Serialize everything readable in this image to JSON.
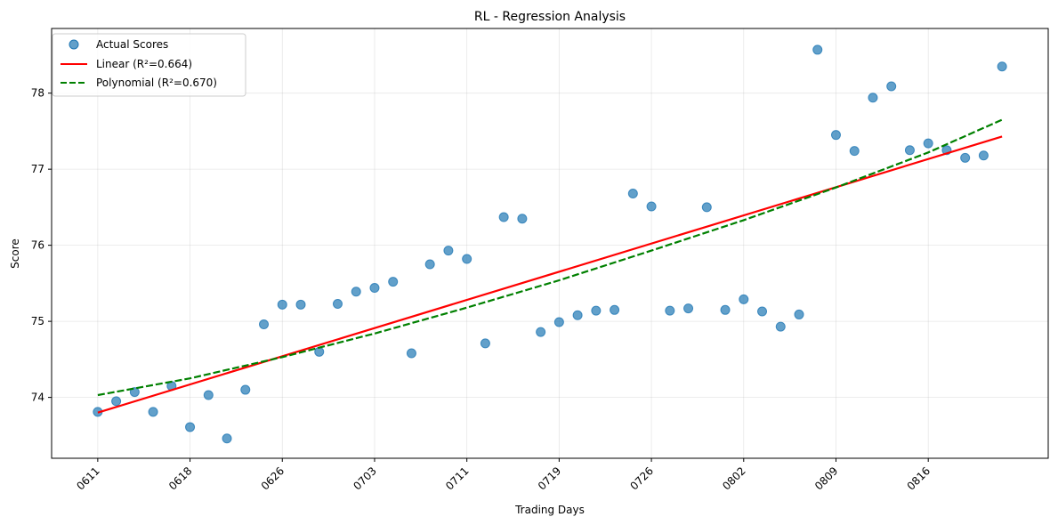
{
  "chart_data": {
    "type": "scatter",
    "title": "RL - Regression Analysis",
    "xlabel": "Trading Days",
    "ylabel": "Score",
    "x_ticks": [
      "0611",
      "0618",
      "0626",
      "0703",
      "0711",
      "0719",
      "0726",
      "0802",
      "0809",
      "0816"
    ],
    "x_tick_indices": [
      0,
      5,
      10,
      15,
      20,
      25,
      30,
      35,
      40,
      45
    ],
    "xlim": [
      -2.5,
      51.5
    ],
    "ylim": [
      73.2,
      78.85
    ],
    "y_ticks": [
      74,
      75,
      76,
      77,
      78
    ],
    "grid": true,
    "legend_position": "upper-left",
    "series": [
      {
        "name": "Actual Scores",
        "kind": "scatter",
        "color": "#1f77b4",
        "x": [
          0,
          1,
          2,
          3,
          4,
          5,
          6,
          7,
          8,
          9,
          10,
          11,
          12,
          13,
          14,
          15,
          16,
          17,
          18,
          19,
          20,
          21,
          22,
          23,
          24,
          25,
          26,
          27,
          28,
          29,
          30,
          31,
          32,
          33,
          34,
          35,
          36,
          37,
          38,
          39,
          40,
          41,
          42,
          43,
          44,
          45,
          46,
          47,
          48,
          49
        ],
        "y": [
          73.81,
          73.95,
          74.07,
          73.81,
          74.15,
          73.61,
          74.03,
          73.46,
          74.1,
          74.96,
          75.22,
          75.22,
          74.6,
          75.23,
          75.39,
          75.44,
          75.52,
          74.58,
          75.75,
          75.93,
          75.82,
          74.71,
          76.37,
          76.35,
          74.86,
          74.99,
          75.08,
          75.14,
          75.15,
          76.68,
          76.51,
          75.14,
          75.17,
          76.5,
          75.15,
          75.29,
          75.13,
          74.93,
          75.09,
          78.57,
          77.45,
          77.24,
          77.94,
          78.09,
          77.25,
          77.34,
          77.25,
          77.15,
          77.18,
          78.35
        ]
      },
      {
        "name": "Linear (R²=0.664)",
        "kind": "line",
        "color": "#ff0000",
        "dash": "solid",
        "x": [
          0,
          49
        ],
        "y": [
          73.8,
          77.43
        ]
      },
      {
        "name": "Polynomial (R²=0.670)",
        "kind": "line",
        "color": "#008000",
        "dash": "dashed",
        "x": [
          0,
          5,
          10,
          15,
          20,
          25,
          30,
          35,
          40,
          45,
          49
        ],
        "y": [
          74.03,
          74.25,
          74.53,
          74.84,
          75.18,
          75.54,
          75.93,
          76.33,
          76.76,
          77.22,
          77.65
        ]
      }
    ]
  }
}
